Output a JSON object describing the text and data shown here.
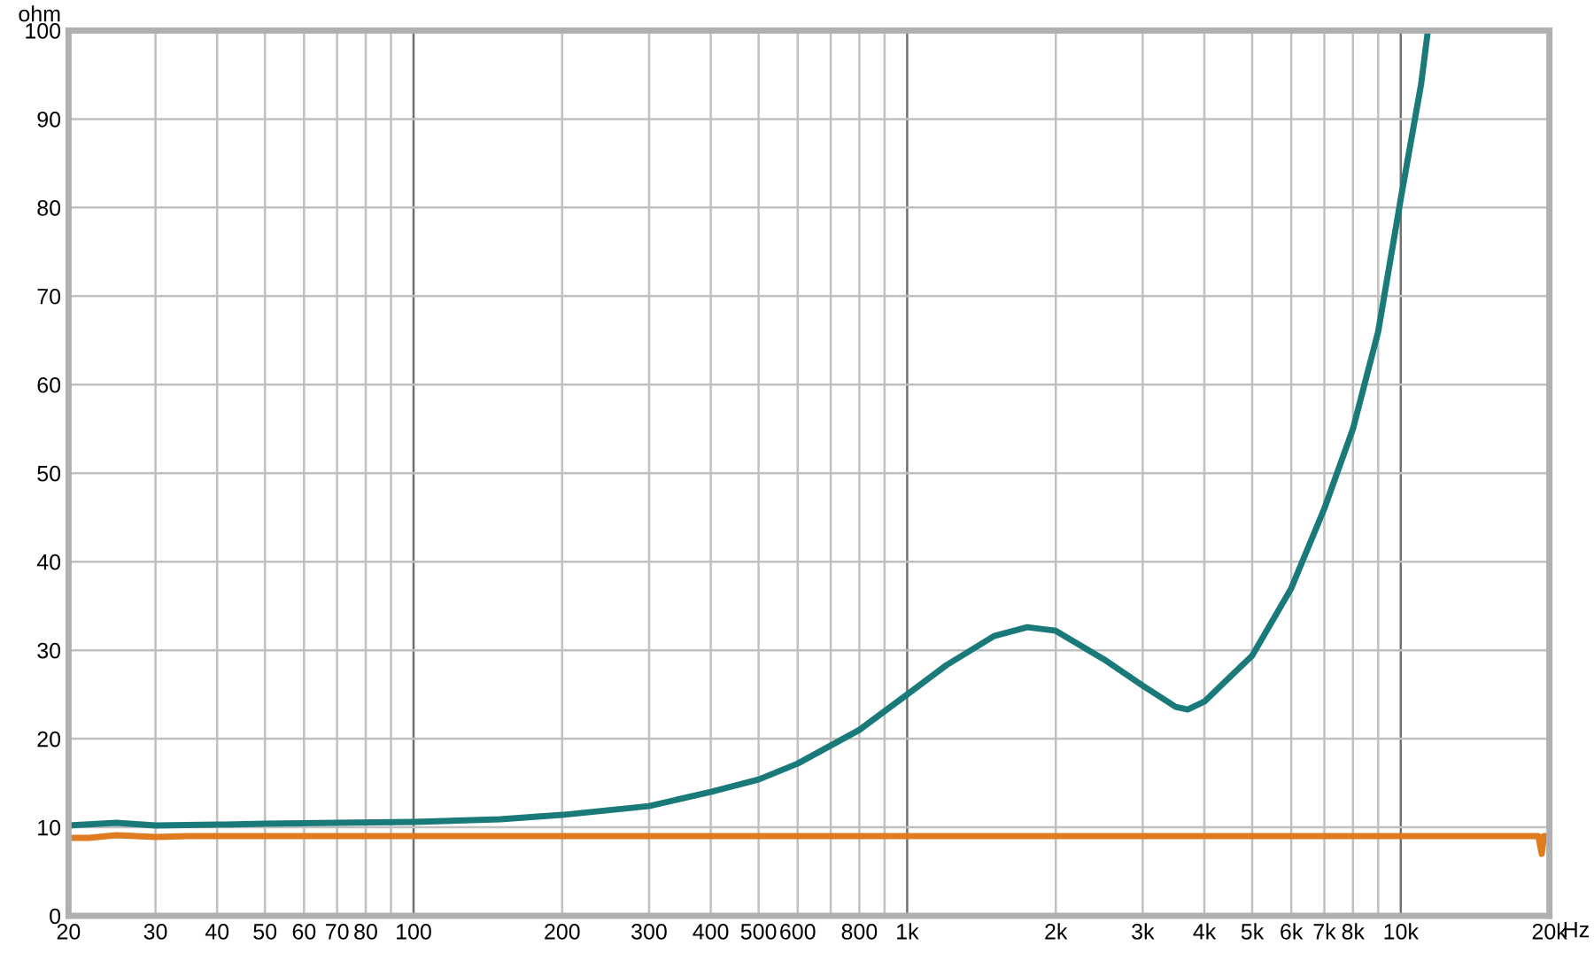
{
  "chart_data": {
    "type": "line",
    "ylabel": "ohm",
    "log": "x",
    "grid": true,
    "marker": "none",
    "line_style": "solid",
    "xlim": [
      20,
      20000
    ],
    "ylim": [
      0,
      100
    ],
    "xticks": [
      20,
      30,
      40,
      50,
      60,
      70,
      80,
      {
        "value": 90,
        "label": null
      },
      100,
      200,
      300,
      400,
      500,
      600,
      {
        "value": 700,
        "label": null
      },
      800,
      {
        "value": 900,
        "label": null
      },
      {
        "value": 1000,
        "label": "1k"
      },
      {
        "value": 2000,
        "label": "2k"
      },
      {
        "value": 3000,
        "label": "3k"
      },
      {
        "value": 4000,
        "label": "4k"
      },
      {
        "value": 5000,
        "label": "5k"
      },
      {
        "value": 6000,
        "label": "6k"
      },
      {
        "value": 7000,
        "label": "7k"
      },
      {
        "value": 8000,
        "label": "8k"
      },
      {
        "value": 9000,
        "label": null
      },
      {
        "value": 10000,
        "label": "10k"
      },
      {
        "value": 20000,
        "label": "20k"
      }
    ],
    "xlabel": "Hz",
    "yticks": [
      0,
      10,
      20,
      30,
      40,
      50,
      60,
      70,
      80,
      90,
      100
    ],
    "series": [
      {
        "color": "#1a7a7a",
        "x": [
          20,
          25,
          30,
          40,
          50,
          70,
          100,
          150,
          200,
          300,
          400,
          500,
          600,
          800,
          1000,
          1200,
          1500,
          1750,
          2000,
          2500,
          3000,
          3500,
          3700,
          4000,
          5000,
          6000,
          7000,
          8000,
          9000,
          10000,
          11000,
          11350
        ],
        "values": [
          10.2,
          10.5,
          10.2,
          10.3,
          10.4,
          10.5,
          10.6,
          10.9,
          11.4,
          12.4,
          14,
          15.4,
          17.2,
          21,
          25,
          28.3,
          31.6,
          32.6,
          32.2,
          29,
          26,
          23.6,
          23.3,
          24.2,
          29.4,
          37,
          46,
          55,
          66,
          81,
          94,
          100
        ]
      },
      {
        "color": "#e07b20",
        "x": [
          20,
          22,
          25,
          30,
          35,
          40,
          100,
          1000,
          10000,
          19000,
          19300,
          19500,
          20000
        ],
        "values": [
          8.8,
          8.8,
          9.1,
          8.9,
          9,
          9,
          9,
          9,
          9,
          9,
          7,
          9,
          9
        ]
      }
    ]
  }
}
